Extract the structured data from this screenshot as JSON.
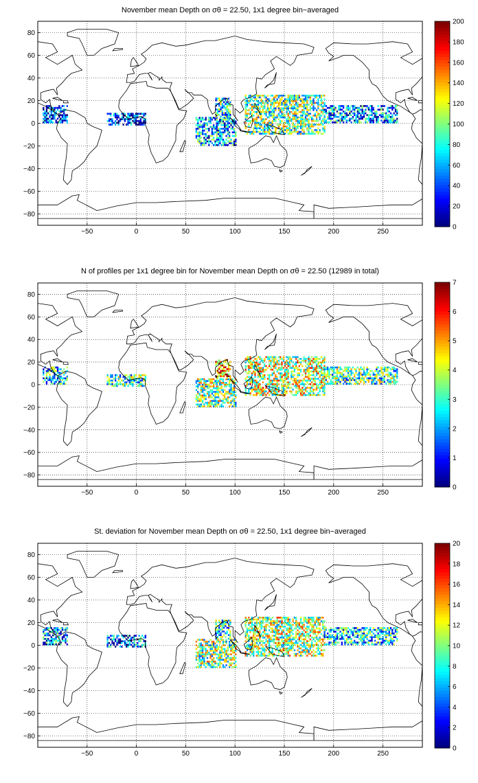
{
  "chart_data": [
    {
      "type": "heatmap",
      "title": "November mean Depth on σθ = 22.50, 1x1 degree bin−averaged",
      "xticks": [
        "−50",
        "0",
        "50",
        "100",
        "150",
        "200",
        "250"
      ],
      "yticks": [
        "80",
        "60",
        "40",
        "20",
        "0",
        "−20",
        "−40",
        "−60",
        "−80"
      ],
      "xlim": [
        -100,
        290
      ],
      "ylim": [
        -90,
        90
      ],
      "grid": true,
      "colorbar": {
        "range": [
          0,
          200
        ],
        "ticks": [
          "0",
          "20",
          "40",
          "60",
          "80",
          "100",
          "120",
          "140",
          "160",
          "180",
          "200"
        ],
        "colormap": "jet"
      },
      "regions": [
        {
          "lon": [
            -95,
            -70
          ],
          "lat": [
            0,
            15
          ],
          "value": 35
        },
        {
          "lon": [
            -30,
            10
          ],
          "lat": [
            -2,
            8
          ],
          "value": 30
        },
        {
          "lon": [
            60,
            100
          ],
          "lat": [
            -20,
            5
          ],
          "value": 60
        },
        {
          "lon": [
            80,
            95
          ],
          "lat": [
            5,
            22
          ],
          "value": 75
        },
        {
          "lon": [
            110,
            190
          ],
          "lat": [
            -10,
            25
          ],
          "value": 95
        },
        {
          "lon": [
            190,
            265
          ],
          "lat": [
            0,
            15
          ],
          "value": 55
        }
      ]
    },
    {
      "type": "heatmap",
      "title": "N of profiles per 1x1 degree bin for November mean Depth on σθ = 22.50 (12989 in total)",
      "total_profiles": 12989,
      "xticks": [
        "−50",
        "0",
        "50",
        "100",
        "150",
        "200",
        "250"
      ],
      "yticks": [
        "80",
        "60",
        "40",
        "20",
        "0",
        "−20",
        "−40",
        "−60",
        "−80"
      ],
      "xlim": [
        -100,
        290
      ],
      "ylim": [
        -90,
        90
      ],
      "grid": true,
      "colorbar": {
        "range": [
          0,
          7
        ],
        "ticks": [
          "0",
          "1",
          "2",
          "3",
          "4",
          "5",
          "6",
          "7"
        ],
        "colormap": "jet"
      },
      "regions": [
        {
          "lon": [
            -95,
            -70
          ],
          "lat": [
            0,
            15
          ],
          "value": 2.5
        },
        {
          "lon": [
            -30,
            10
          ],
          "lat": [
            -2,
            8
          ],
          "value": 3
        },
        {
          "lon": [
            60,
            100
          ],
          "lat": [
            -20,
            5
          ],
          "value": 3.5
        },
        {
          "lon": [
            80,
            95
          ],
          "lat": [
            5,
            22
          ],
          "value": 5
        },
        {
          "lon": [
            110,
            190
          ],
          "lat": [
            -10,
            25
          ],
          "value": 4
        },
        {
          "lon": [
            190,
            265
          ],
          "lat": [
            0,
            15
          ],
          "value": 3
        }
      ]
    },
    {
      "type": "heatmap",
      "title": "St. deviation for November mean Depth on σθ = 22.50, 1x1 degree bin−averaged",
      "xticks": [
        "−50",
        "0",
        "50",
        "100",
        "150",
        "200",
        "250"
      ],
      "yticks": [
        "80",
        "60",
        "40",
        "20",
        "0",
        "−20",
        "−40",
        "−60",
        "−80"
      ],
      "xlim": [
        -100,
        290
      ],
      "ylim": [
        -90,
        90
      ],
      "grid": true,
      "colorbar": {
        "range": [
          0,
          20
        ],
        "ticks": [
          "0",
          "2",
          "4",
          "6",
          "8",
          "10",
          "12",
          "14",
          "16",
          "18",
          "20"
        ],
        "colormap": "jet"
      },
      "regions": [
        {
          "lon": [
            -95,
            -70
          ],
          "lat": [
            0,
            15
          ],
          "value": 5
        },
        {
          "lon": [
            -30,
            10
          ],
          "lat": [
            -2,
            8
          ],
          "value": 4
        },
        {
          "lon": [
            60,
            100
          ],
          "lat": [
            -20,
            5
          ],
          "value": 10
        },
        {
          "lon": [
            80,
            95
          ],
          "lat": [
            5,
            22
          ],
          "value": 8
        },
        {
          "lon": [
            110,
            190
          ],
          "lat": [
            -10,
            25
          ],
          "value": 11
        },
        {
          "lon": [
            190,
            265
          ],
          "lat": [
            0,
            15
          ],
          "value": 7
        }
      ]
    }
  ]
}
